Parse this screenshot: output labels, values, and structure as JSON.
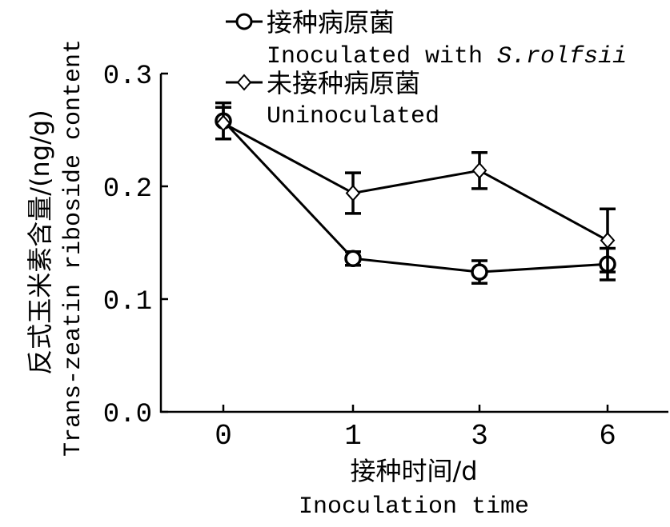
{
  "chart_data": {
    "type": "line",
    "title": "",
    "ylabel_cn": "反式玉米素含量/(ng/g)",
    "ylabel_en": "Trans-zeatin riboside content",
    "xlabel_cn": "接种时间/d",
    "xlabel_en": "Inoculation time",
    "categories": [
      "0",
      "1",
      "3",
      "6"
    ],
    "y_ticks": [
      "0.0",
      "0.1",
      "0.2",
      "0.3"
    ],
    "ylim": [
      0,
      0.3
    ],
    "grid": false,
    "legend_position": "top",
    "series": [
      {
        "name_cn": "接种病原菌",
        "name_en_prefix": "Inoculated with ",
        "name_en_italic": "S.rolfsii",
        "marker": "circle",
        "values": [
          0.258,
          0.136,
          0.124,
          0.131
        ],
        "errors": [
          0.016,
          0.006,
          0.01,
          0.014
        ]
      },
      {
        "name_cn": "未接种病原菌",
        "name_en": "Uninoculated",
        "marker": "diamond",
        "values": [
          0.256,
          0.194,
          0.214,
          0.152
        ],
        "errors": [
          0.014,
          0.018,
          0.016,
          0.028
        ]
      }
    ]
  }
}
